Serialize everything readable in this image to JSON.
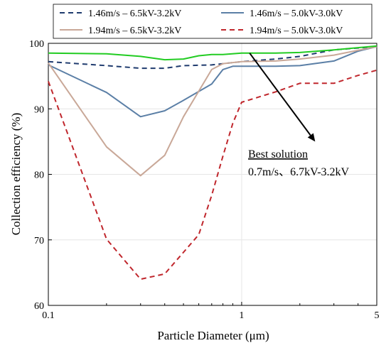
{
  "chart_data": {
    "type": "line",
    "title": "",
    "xlabel": "Particle Diameter (μm)",
    "ylabel": "Collection efficiency (%)",
    "x_scale": "log",
    "xlim": [
      0.1,
      5
    ],
    "ylim": [
      60,
      100
    ],
    "x_ticks": [
      0.1,
      1,
      5
    ],
    "x_tick_labels": [
      "0.1",
      "1",
      "5"
    ],
    "y_ticks": [
      60,
      70,
      80,
      90,
      100
    ],
    "y_tick_labels": [
      "60",
      "70",
      "80",
      "90",
      "100"
    ],
    "grid": true,
    "legend": {
      "placement": "top",
      "columns": 2
    },
    "series": [
      {
        "name": "1.46m/s – 6.5kV-3.2kV",
        "color": "#1f3b6e",
        "dash": "dashed",
        "x": [
          0.1,
          0.2,
          0.3,
          0.4,
          0.5,
          0.7,
          1,
          1.5,
          2,
          3,
          5
        ],
        "y": [
          97.2,
          96.6,
          96.2,
          96.2,
          96.6,
          96.7,
          97.2,
          97.6,
          98.0,
          99.0,
          99.5
        ]
      },
      {
        "name": "1.46m/s – 5.0kV-3.0kV",
        "color": "#5b7fa6",
        "dash": "solid",
        "x": [
          0.1,
          0.2,
          0.3,
          0.4,
          0.5,
          0.7,
          0.8,
          0.9,
          1,
          1.5,
          2,
          3,
          4,
          5
        ],
        "y": [
          96.7,
          92.5,
          88.8,
          89.7,
          91.3,
          93.8,
          96.0,
          96.5,
          96.5,
          96.5,
          96.6,
          97.3,
          98.8,
          99.5
        ]
      },
      {
        "name": "1.94m/s – 6.5kV-3.2kV",
        "color": "#c9a898",
        "dash": "solid",
        "x": [
          0.1,
          0.2,
          0.3,
          0.4,
          0.5,
          0.7,
          0.8,
          1,
          1.5,
          2,
          3,
          5
        ],
        "y": [
          97.0,
          84.2,
          79.8,
          82.9,
          88.8,
          96.0,
          96.9,
          97.2,
          97.3,
          97.6,
          98.2,
          99.5
        ]
      },
      {
        "name": "1.94m/s – 5.0kV-3.0kV",
        "color": "#c0272d",
        "dash": "dashed",
        "x": [
          0.1,
          0.2,
          0.3,
          0.4,
          0.6,
          0.7,
          0.8,
          0.9,
          1,
          1.5,
          2,
          3,
          4,
          5
        ],
        "y": [
          94.2,
          70.1,
          64.0,
          64.8,
          70.8,
          76.8,
          82.8,
          87.8,
          91.0,
          92.6,
          93.9,
          93.9,
          95.1,
          95.9
        ]
      },
      {
        "name": "",
        "color": "#22cc22",
        "dash": "solid",
        "x": [
          0.1,
          0.2,
          0.3,
          0.4,
          0.5,
          0.6,
          0.7,
          0.8,
          1,
          1.5,
          2,
          3,
          5
        ],
        "y": [
          98.5,
          98.4,
          98.0,
          97.5,
          97.6,
          98.1,
          98.3,
          98.3,
          98.5,
          98.5,
          98.6,
          99.0,
          99.6
        ]
      }
    ],
    "annotation": {
      "title": "Best solution",
      "text": "0.7m/s、6.7kV-3.2kV",
      "arrow_from": {
        "x": 1.1,
        "y": 98.5
      },
      "arrow_to": {
        "x": 2.4,
        "y": 85.0
      }
    }
  }
}
